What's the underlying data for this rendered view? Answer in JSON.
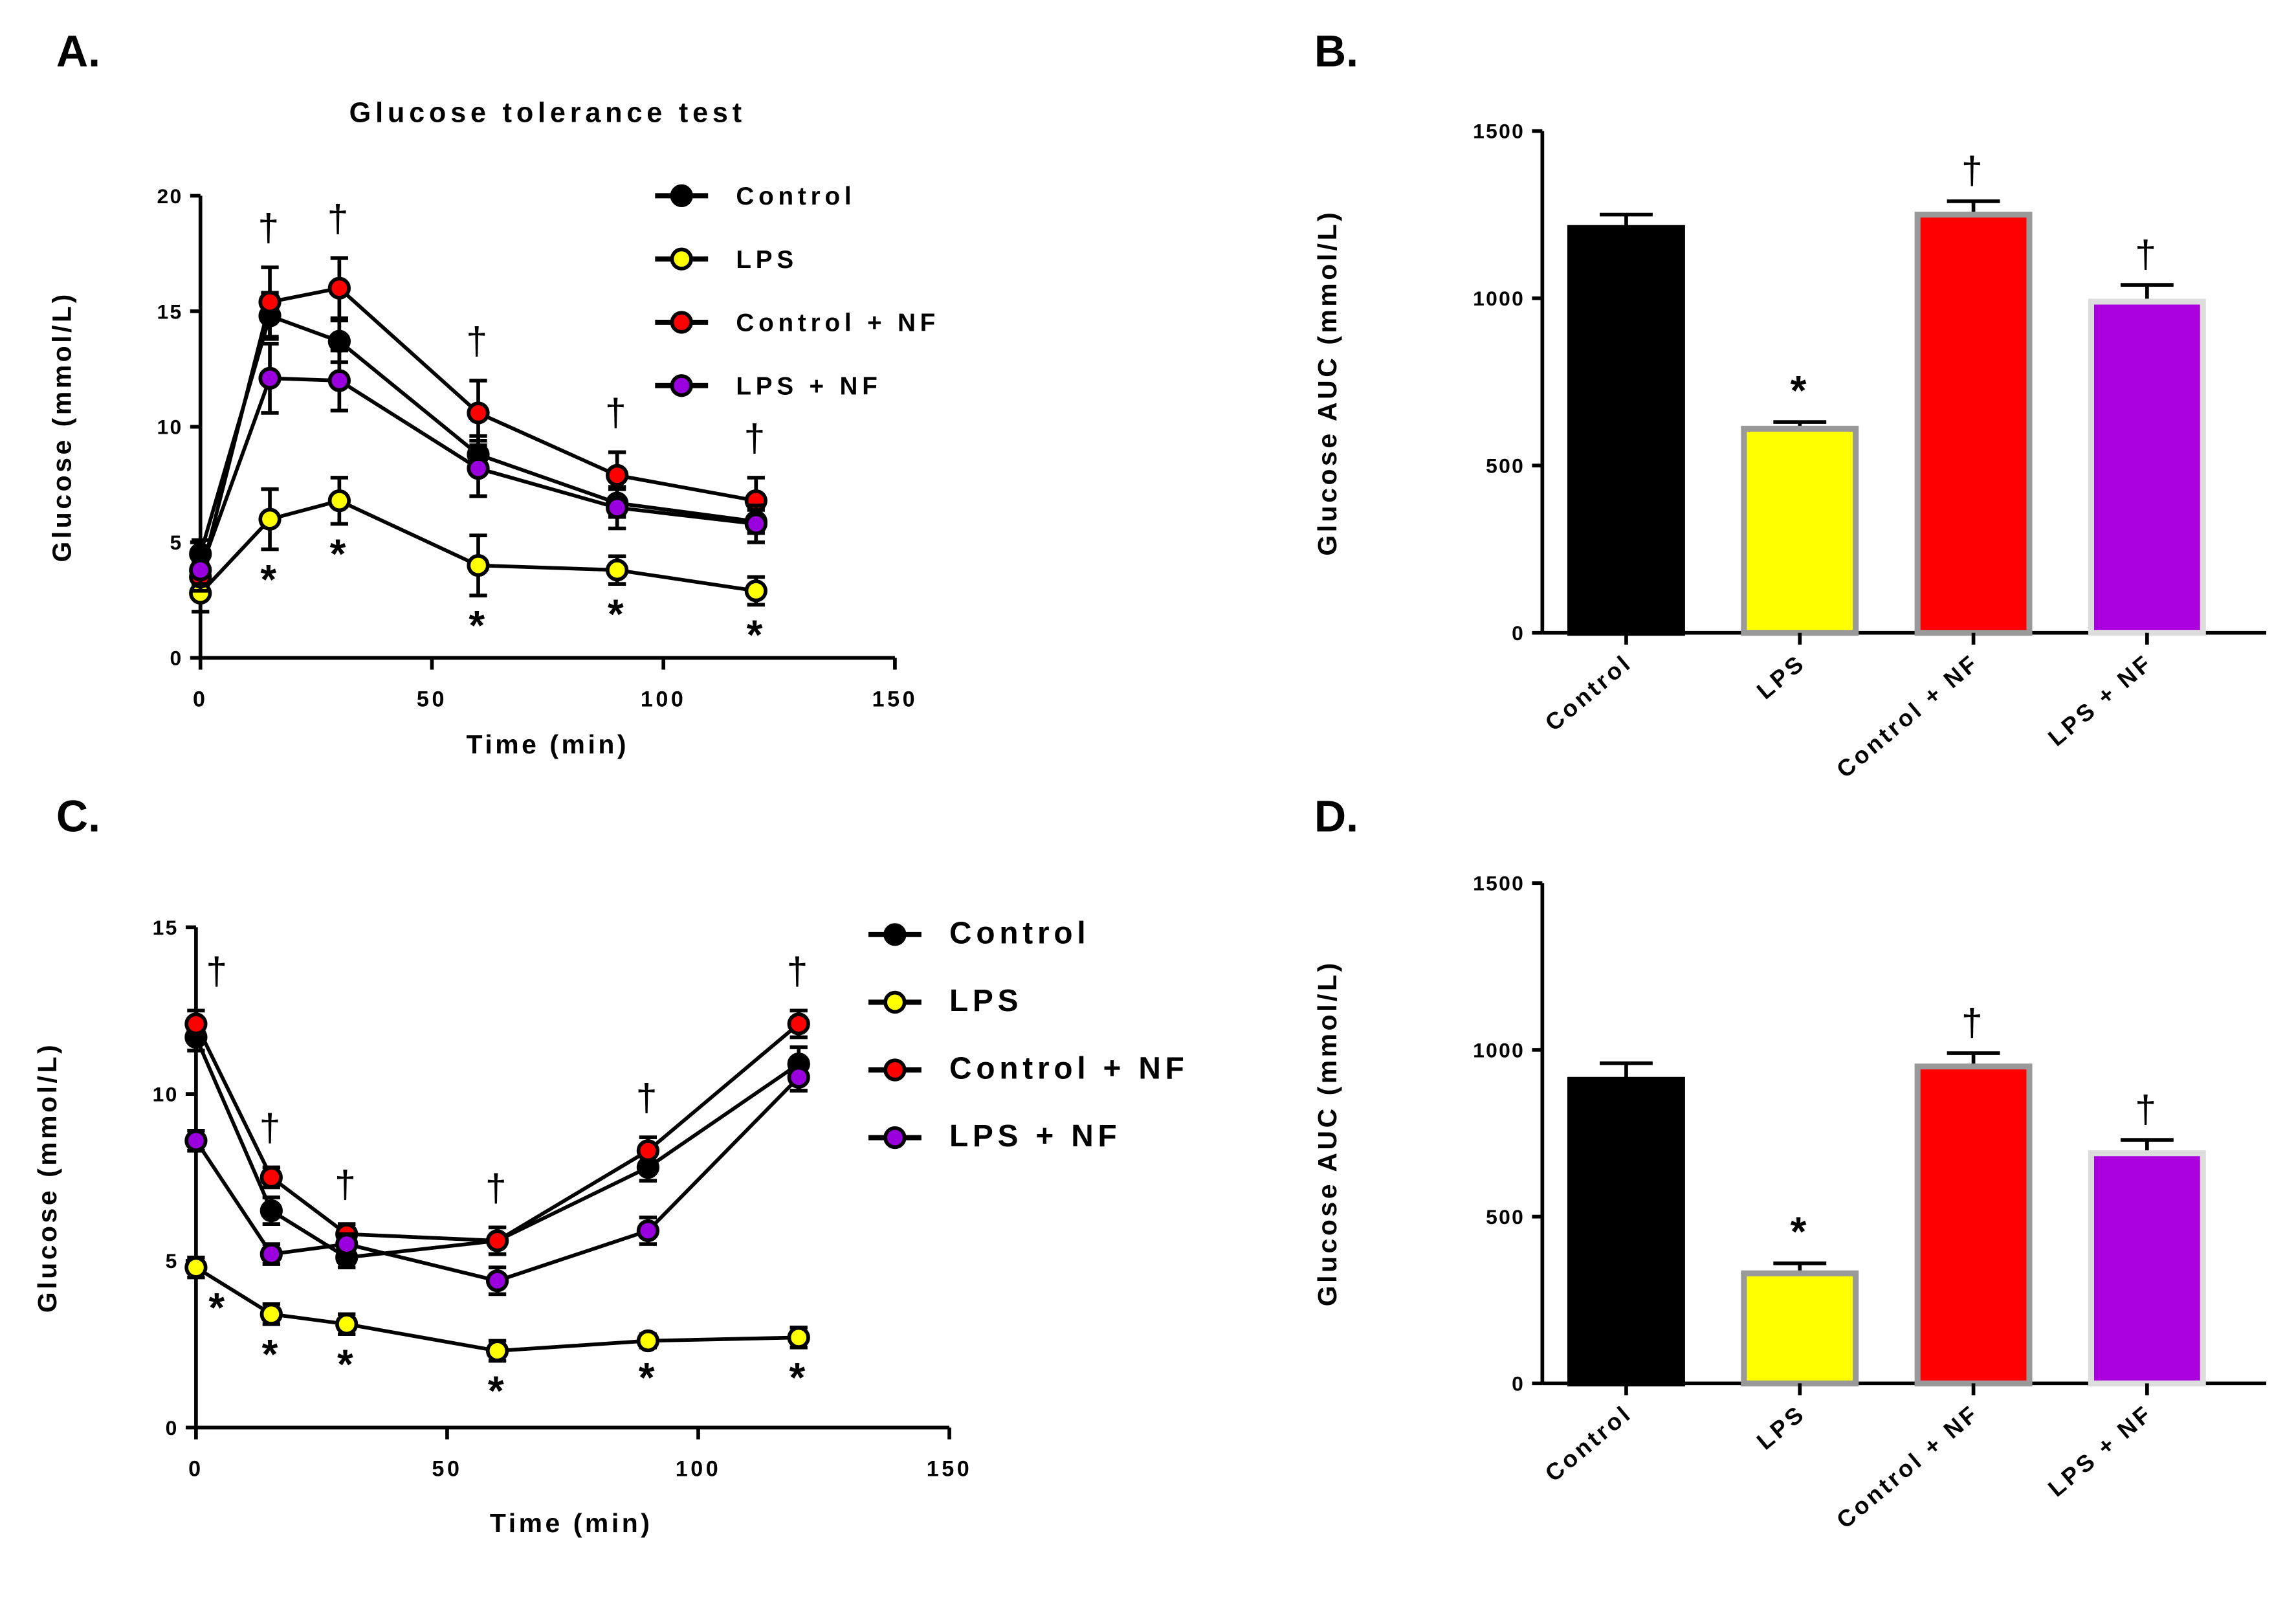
{
  "chart_data": [
    {
      "panel": "A.",
      "type": "line",
      "title": "Glucose tolerance test",
      "xlabel": "Time (min)",
      "ylabel": "Glucose (mmol/L)",
      "xlim": [
        0,
        150
      ],
      "ylim": [
        0,
        20
      ],
      "xticks": [
        0,
        50,
        100,
        150
      ],
      "yticks": [
        0,
        5,
        10,
        15,
        20
      ],
      "legend_position": "top-right",
      "x": [
        0,
        15,
        30,
        60,
        90,
        120
      ],
      "series": [
        {
          "name": "Control",
          "color": "#000000",
          "values": [
            4.5,
            14.8,
            13.7,
            8.8,
            6.7,
            5.9
          ],
          "errors": [
            0.6,
            1.0,
            0.9,
            0.8,
            0.6,
            0.5
          ]
        },
        {
          "name": "LPS",
          "color": "#ffff00",
          "values": [
            2.8,
            6.0,
            6.8,
            4.0,
            3.8,
            2.9
          ],
          "errors": [
            0.8,
            1.3,
            1.0,
            1.3,
            0.6,
            0.6
          ]
        },
        {
          "name": "Control + NF",
          "color": "#ff0000",
          "values": [
            3.5,
            15.4,
            16.0,
            10.6,
            7.9,
            6.8
          ],
          "errors": [
            0.6,
            1.5,
            1.3,
            1.4,
            1.0,
            1.0
          ]
        },
        {
          "name": "LPS + NF",
          "color": "#9900dd",
          "values": [
            3.8,
            12.1,
            12.0,
            8.2,
            6.5,
            5.8
          ],
          "errors": [
            0.6,
            1.5,
            1.3,
            1.2,
            0.9,
            0.8
          ]
        }
      ],
      "daggers_at": [
        15,
        30,
        60,
        90,
        120
      ],
      "asterisks_at": [
        15,
        30,
        60,
        90,
        120
      ],
      "dagger_symbol": "†",
      "asterisk_symbol": "*"
    },
    {
      "panel": "B.",
      "type": "bar",
      "ylabel": "Glucose AUC (mmol/L)",
      "ylim": [
        0,
        1500
      ],
      "yticks": [
        0,
        500,
        1000,
        1500
      ],
      "categories": [
        "Control",
        "LPS",
        "Control + NF",
        "LPS + NF"
      ],
      "values": [
        1210,
        610,
        1250,
        990
      ],
      "errors": [
        40,
        20,
        40,
        50
      ],
      "colors": [
        "#000000",
        "#ffff00",
        "#ff0000",
        "#aa00dd"
      ],
      "borders": [
        "#000000",
        "#999999",
        "#999999",
        "#dddddd"
      ],
      "marks": [
        "",
        "*",
        "†",
        "†"
      ]
    },
    {
      "panel": "C.",
      "type": "line",
      "xlabel": "Time (min)",
      "ylabel": "Glucose (mmol/L)",
      "xlim": [
        0,
        150
      ],
      "ylim": [
        0,
        15
      ],
      "xticks": [
        0,
        50,
        100,
        150
      ],
      "yticks": [
        0,
        5,
        10,
        15
      ],
      "legend_position": "top-right",
      "x": [
        0,
        15,
        30,
        60,
        90,
        120
      ],
      "series": [
        {
          "name": "Control",
          "color": "#000000",
          "values": [
            11.7,
            6.5,
            5.1,
            5.6,
            7.8,
            10.9
          ],
          "errors": [
            0.4,
            0.4,
            0.3,
            0.4,
            0.4,
            0.5
          ]
        },
        {
          "name": "LPS",
          "color": "#ffff00",
          "values": [
            4.8,
            3.4,
            3.1,
            2.3,
            2.6,
            2.7
          ],
          "errors": [
            0.3,
            0.3,
            0.3,
            0.3,
            0.2,
            0.3
          ]
        },
        {
          "name": "Control + NF",
          "color": "#ff0000",
          "values": [
            12.1,
            7.5,
            5.8,
            5.6,
            8.3,
            12.1
          ],
          "errors": [
            0.4,
            0.3,
            0.3,
            0.4,
            0.4,
            0.4
          ]
        },
        {
          "name": "LPS + NF",
          "color": "#9900dd",
          "values": [
            8.6,
            5.2,
            5.5,
            4.4,
            5.9,
            10.5
          ],
          "errors": [
            0.3,
            0.3,
            0.3,
            0.4,
            0.4,
            0.4
          ]
        }
      ],
      "daggers_at": [
        0,
        15,
        30,
        60,
        90,
        120
      ],
      "asterisks_at": [
        0,
        15,
        30,
        60,
        90,
        120
      ],
      "dagger_symbol": "†",
      "asterisk_symbol": "*"
    },
    {
      "panel": "D.",
      "type": "bar",
      "ylabel": "Glucose AUC (mmol/L)",
      "ylim": [
        0,
        1500
      ],
      "yticks": [
        0,
        500,
        1000,
        1500
      ],
      "categories": [
        "Control",
        "LPS",
        "Control + NF",
        "LPS + NF"
      ],
      "values": [
        910,
        330,
        950,
        690
      ],
      "errors": [
        50,
        30,
        40,
        40
      ],
      "colors": [
        "#000000",
        "#ffff00",
        "#ff0000",
        "#aa00dd"
      ],
      "borders": [
        "#000000",
        "#999999",
        "#999999",
        "#dddddd"
      ],
      "marks": [
        "",
        "*",
        "†",
        "†"
      ]
    }
  ]
}
